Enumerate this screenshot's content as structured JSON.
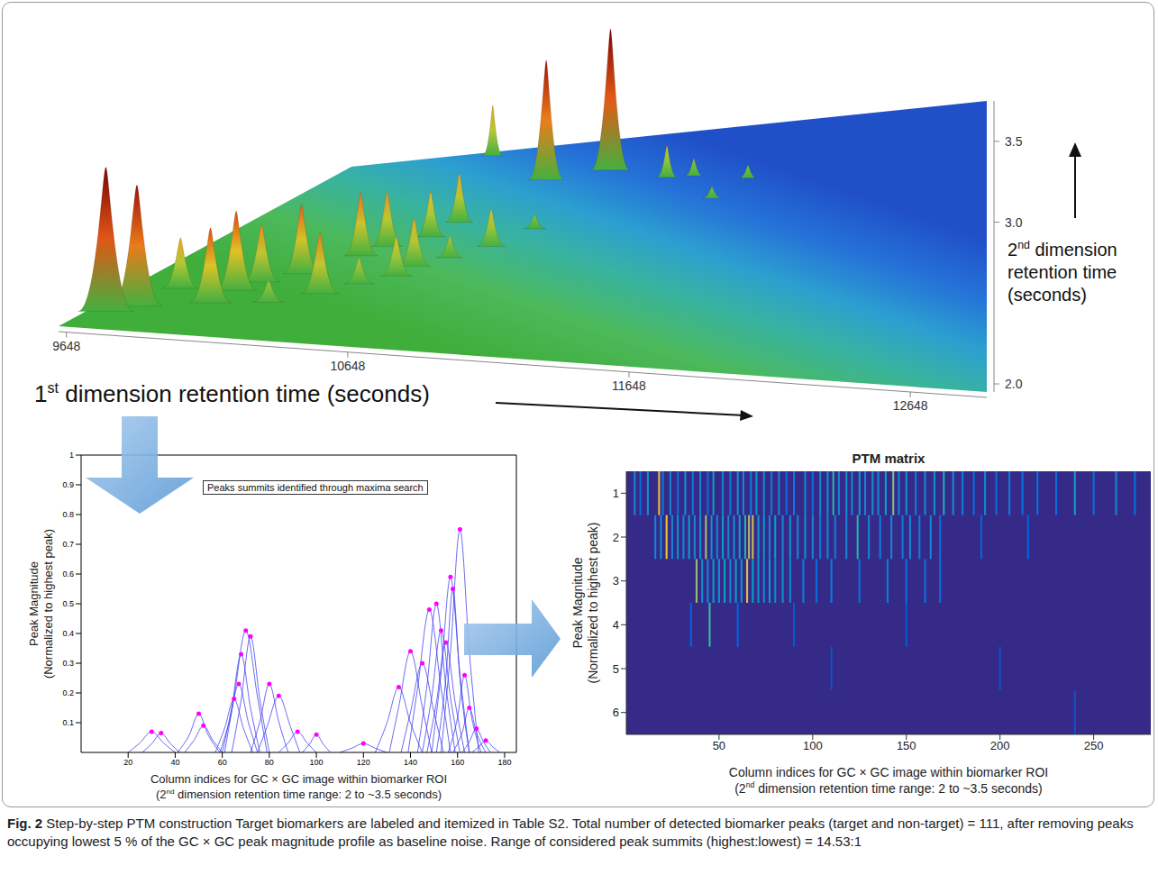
{
  "caption": {
    "label": "Fig. 2",
    "text": "Step-by-step PTM construction Target biomarkers are labeled and itemized in Table S2. Total number of detected biomarker peaks (target and non-target) = 111, after removing peaks occupying lowest 5 % of the GC × GC peak magnitude profile as baseline noise. Range of considered peak summits (highest:lowest) = 14.53:1"
  },
  "chart_data": [
    {
      "type": "surface",
      "x_label": "1st dimension retention time (seconds)",
      "y_label": "2nd dimension retention time (seconds)",
      "xlim": [
        9620,
        12920
      ],
      "xticks": [
        9648,
        10648,
        11648,
        12648
      ],
      "ylim": [
        1.95,
        3.75
      ],
      "yticks": [
        {
          "value": 2,
          "label": "2.0"
        },
        {
          "value": 3,
          "label": "3.0"
        },
        3.5
      ],
      "peaks": [
        {
          "x": 10380,
          "y": 3.71,
          "z": 0.35
        },
        {
          "x": 11092,
          "y": 3.48,
          "z": 0.98
        },
        {
          "x": 10805,
          "y": 3.43,
          "z": 0.83
        },
        {
          "x": 11399,
          "y": 3.39,
          "z": 0.22
        },
        {
          "x": 11527,
          "y": 3.39,
          "z": 0.12
        },
        {
          "x": 11795,
          "y": 3.35,
          "z": 0.09
        },
        {
          "x": 11666,
          "y": 3.21,
          "z": 0.08
        },
        {
          "x": 10587,
          "y": 3.07,
          "z": 0.34
        },
        {
          "x": 10950,
          "y": 3.0,
          "z": 0.1
        },
        {
          "x": 10528,
          "y": 2.94,
          "z": 0.31
        },
        {
          "x": 10389,
          "y": 2.85,
          "z": 0.38
        },
        {
          "x": 10828,
          "y": 2.85,
          "z": 0.26
        },
        {
          "x": 10326,
          "y": 2.76,
          "z": 0.44
        },
        {
          "x": 10700,
          "y": 2.75,
          "z": 0.15
        },
        {
          "x": 10590,
          "y": 2.67,
          "z": 0.33
        },
        {
          "x": 10181,
          "y": 2.58,
          "z": 0.48
        },
        {
          "x": 10560,
          "y": 2.58,
          "z": 0.27
        },
        {
          "x": 10450,
          "y": 2.5,
          "z": 0.18
        },
        {
          "x": 10072,
          "y": 2.49,
          "z": 0.4
        },
        {
          "x": 10023,
          "y": 2.4,
          "z": 0.55
        },
        {
          "x": 10346,
          "y": 2.4,
          "z": 0.42
        },
        {
          "x": 9808,
          "y": 2.4,
          "z": 0.35
        },
        {
          "x": 10200,
          "y": 2.3,
          "z": 0.15
        },
        {
          "x": 9996,
          "y": 2.27,
          "z": 0.52
        },
        {
          "x": 9760,
          "y": 2.2,
          "z": 0.84
        },
        {
          "x": 9686,
          "y": 2.13,
          "z": 1.0
        }
      ]
    },
    {
      "type": "line",
      "annotation": "Peaks summits identified through maxima search",
      "x_label": "Column indices for GC × GC image within biomarker ROI (2nd dimension retention time range: 2 to ~3.5 seconds)",
      "y_label": "Peak Magnitude (Normalized to highest peak)",
      "xlim": [
        0,
        185
      ],
      "xticks": [
        20,
        40,
        60,
        80,
        100,
        120,
        140,
        160,
        180
      ],
      "ylim": [
        0,
        1
      ],
      "yticks": [
        0.1,
        0.2,
        0.3,
        0.4,
        0.5,
        0.6,
        0.7,
        0.8,
        0.9,
        1
      ],
      "color": "#3a3af0",
      "marker": "circle",
      "series": [
        {
          "x": [
            20,
            25,
            30,
            35,
            40
          ],
          "values": [
            0,
            0.032,
            0.07,
            0.032,
            0
          ]
        },
        {
          "x": [
            26,
            30,
            34,
            38,
            42
          ],
          "values": [
            0,
            0.029,
            0.065,
            0.029,
            0
          ]
        },
        {
          "x": [
            41,
            46,
            50,
            54,
            59
          ],
          "values": [
            0,
            0.059,
            0.13,
            0.059,
            0
          ]
        },
        {
          "x": [
            44,
            48,
            52,
            56,
            60
          ],
          "values": [
            0,
            0.041,
            0.09,
            0.041,
            0
          ]
        },
        {
          "x": [
            57,
            61,
            65,
            69,
            73
          ],
          "values": [
            0,
            0.081,
            0.18,
            0.081,
            0
          ]
        },
        {
          "x": [
            59,
            63,
            67,
            71,
            75
          ],
          "values": [
            0,
            0.104,
            0.23,
            0.104,
            0
          ]
        },
        {
          "x": [
            60,
            64,
            68,
            72,
            76
          ],
          "values": [
            0,
            0.149,
            0.33,
            0.149,
            0
          ]
        },
        {
          "x": [
            61,
            65,
            70,
            75,
            79
          ],
          "values": [
            0,
            0.185,
            0.41,
            0.185,
            0
          ]
        },
        {
          "x": [
            64,
            68,
            72,
            76,
            80
          ],
          "values": [
            0,
            0.176,
            0.39,
            0.176,
            0
          ]
        },
        {
          "x": [
            72,
            76,
            80,
            84,
            88
          ],
          "values": [
            0,
            0.104,
            0.23,
            0.104,
            0
          ]
        },
        {
          "x": [
            75,
            79,
            84,
            89,
            93
          ],
          "values": [
            0,
            0.086,
            0.19,
            0.086,
            0
          ]
        },
        {
          "x": [
            84,
            88,
            92,
            96,
            100
          ],
          "values": [
            0,
            0.032,
            0.07,
            0.032,
            0
          ]
        },
        {
          "x": [
            94,
            97,
            100,
            103,
            106
          ],
          "values": [
            0,
            0.027,
            0.06,
            0.027,
            0
          ]
        },
        {
          "x": [
            110,
            115,
            120,
            125,
            130
          ],
          "values": [
            0,
            0.014,
            0.03,
            0.014,
            0
          ]
        },
        {
          "x": [
            125,
            130,
            135,
            140,
            145
          ],
          "values": [
            0,
            0.099,
            0.22,
            0.099,
            0
          ]
        },
        {
          "x": [
            131,
            135,
            140,
            145,
            149
          ],
          "values": [
            0,
            0.153,
            0.34,
            0.153,
            0
          ]
        },
        {
          "x": [
            136,
            140,
            145,
            150,
            154
          ],
          "values": [
            0,
            0.135,
            0.3,
            0.135,
            0
          ]
        },
        {
          "x": [
            139,
            143,
            148,
            153,
            157
          ],
          "values": [
            0,
            0.216,
            0.48,
            0.216,
            0
          ]
        },
        {
          "x": [
            143,
            147,
            151,
            155,
            159
          ],
          "values": [
            0,
            0.225,
            0.5,
            0.225,
            0
          ]
        },
        {
          "x": [
            145,
            149,
            153,
            157,
            161
          ],
          "values": [
            0,
            0.185,
            0.41,
            0.185,
            0
          ]
        },
        {
          "x": [
            147,
            151,
            155,
            159,
            163
          ],
          "values": [
            0,
            0.167,
            0.37,
            0.167,
            0
          ]
        },
        {
          "x": [
            149,
            153,
            157,
            161,
            165
          ],
          "values": [
            0,
            0.266,
            0.59,
            0.266,
            0
          ]
        },
        {
          "x": [
            151,
            155,
            158,
            161,
            165
          ],
          "values": [
            0,
            0.248,
            0.55,
            0.248,
            0
          ]
        },
        {
          "x": [
            153,
            157,
            161,
            165,
            169
          ],
          "values": [
            0,
            0.338,
            0.75,
            0.338,
            0
          ]
        },
        {
          "x": [
            156,
            160,
            163,
            166,
            170
          ],
          "values": [
            0,
            0.117,
            0.26,
            0.117,
            0
          ]
        },
        {
          "x": [
            158,
            162,
            165,
            168,
            172
          ],
          "values": [
            0,
            0.068,
            0.15,
            0.068,
            0
          ]
        },
        {
          "x": [
            162,
            165,
            168,
            171,
            174
          ],
          "values": [
            0,
            0.036,
            0.08,
            0.036,
            0
          ]
        },
        {
          "x": [
            166,
            169,
            172,
            175,
            178
          ],
          "values": [
            0,
            0.018,
            0.04,
            0.018,
            0
          ]
        }
      ]
    },
    {
      "type": "heatmap",
      "title": "PTM matrix",
      "x_label": "Column indices for GC × GC image within biomarker ROI (2nd dimension retention time range: 2 to ~3.5 seconds)",
      "y_label": "Peak Magnitude (Normalized to highest peak)",
      "xlim": [
        0.5,
        280.5
      ],
      "xticks": [
        50,
        100,
        150,
        200,
        250
      ],
      "ylim": [
        0.5,
        6.5
      ],
      "yticks": [
        1,
        2,
        3,
        4,
        5,
        6
      ],
      "zlim": [
        0,
        1
      ],
      "cells": [
        [
          1,
          5,
          0.3
        ],
        [
          1,
          8,
          0.2
        ],
        [
          1,
          12,
          0.35
        ],
        [
          1,
          18,
          0.9
        ],
        [
          1,
          20,
          0.25
        ],
        [
          1,
          24,
          0.3
        ],
        [
          1,
          28,
          0.2
        ],
        [
          1,
          32,
          0.35
        ],
        [
          1,
          36,
          0.25
        ],
        [
          1,
          40,
          0.3
        ],
        [
          1,
          44,
          0.2
        ],
        [
          1,
          47,
          0.4
        ],
        [
          1,
          52,
          0.3
        ],
        [
          1,
          56,
          0.25
        ],
        [
          1,
          60,
          0.35
        ],
        [
          1,
          63,
          0.3
        ],
        [
          1,
          67,
          0.25
        ],
        [
          1,
          70,
          0.35
        ],
        [
          1,
          74,
          0.3
        ],
        [
          1,
          78,
          0.25
        ],
        [
          1,
          82,
          0.3
        ],
        [
          1,
          86,
          0.2
        ],
        [
          1,
          90,
          0.25
        ],
        [
          1,
          96,
          0.3
        ],
        [
          1,
          100,
          0.2
        ],
        [
          1,
          104,
          0.3
        ],
        [
          1,
          108,
          0.35
        ],
        [
          1,
          111,
          0.55
        ],
        [
          1,
          114,
          0.3
        ],
        [
          1,
          118,
          0.35
        ],
        [
          1,
          121,
          0.3
        ],
        [
          1,
          125,
          0.4
        ],
        [
          1,
          128,
          0.3
        ],
        [
          1,
          132,
          0.35
        ],
        [
          1,
          135,
          0.3
        ],
        [
          1,
          139,
          0.4
        ],
        [
          1,
          143,
          0.72
        ],
        [
          1,
          146,
          0.3
        ],
        [
          1,
          150,
          0.35
        ],
        [
          1,
          155,
          0.25
        ],
        [
          1,
          160,
          0.3
        ],
        [
          1,
          165,
          0.35
        ],
        [
          1,
          170,
          0.5
        ],
        [
          1,
          175,
          0.3
        ],
        [
          1,
          180,
          0.25
        ],
        [
          1,
          186,
          0.2
        ],
        [
          1,
          192,
          0.3
        ],
        [
          1,
          198,
          0.2
        ],
        [
          1,
          205,
          0.25
        ],
        [
          1,
          212,
          0.2
        ],
        [
          1,
          220,
          0.2
        ],
        [
          1,
          230,
          0.2
        ],
        [
          1,
          240,
          0.4
        ],
        [
          1,
          250,
          0.2
        ],
        [
          1,
          262,
          0.3
        ],
        [
          1,
          272,
          0.2
        ],
        [
          2,
          16,
          0.3
        ],
        [
          2,
          19,
          0.35
        ],
        [
          2,
          22,
          0.92
        ],
        [
          2,
          25,
          0.3
        ],
        [
          2,
          28,
          0.35
        ],
        [
          2,
          31,
          0.3
        ],
        [
          2,
          34,
          0.4
        ],
        [
          2,
          37,
          0.3
        ],
        [
          2,
          40,
          0.35
        ],
        [
          2,
          43,
          0.78
        ],
        [
          2,
          46,
          0.35
        ],
        [
          2,
          49,
          0.3
        ],
        [
          2,
          52,
          0.4
        ],
        [
          2,
          55,
          0.3
        ],
        [
          2,
          58,
          0.35
        ],
        [
          2,
          61,
          0.4
        ],
        [
          2,
          64,
          0.55
        ],
        [
          2,
          66,
          0.8
        ],
        [
          2,
          68,
          0.85
        ],
        [
          2,
          71,
          0.4
        ],
        [
          2,
          74,
          0.35
        ],
        [
          2,
          77,
          0.3
        ],
        [
          2,
          80,
          0.4
        ],
        [
          2,
          84,
          0.3
        ],
        [
          2,
          88,
          0.35
        ],
        [
          2,
          92,
          0.3
        ],
        [
          2,
          96,
          0.35
        ],
        [
          2,
          100,
          0.3
        ],
        [
          2,
          104,
          0.25
        ],
        [
          2,
          108,
          0.3
        ],
        [
          2,
          112,
          0.25
        ],
        [
          2,
          118,
          0.3
        ],
        [
          2,
          124,
          0.55
        ],
        [
          2,
          130,
          0.3
        ],
        [
          2,
          136,
          0.25
        ],
        [
          2,
          142,
          0.3
        ],
        [
          2,
          148,
          0.25
        ],
        [
          2,
          152,
          0.3
        ],
        [
          2,
          157,
          0.25
        ],
        [
          2,
          163,
          0.3
        ],
        [
          2,
          168,
          0.2
        ],
        [
          2,
          190,
          0.15
        ],
        [
          2,
          215,
          0.15
        ],
        [
          3,
          38,
          0.75
        ],
        [
          3,
          41,
          0.35
        ],
        [
          3,
          44,
          0.3
        ],
        [
          3,
          47,
          0.4
        ],
        [
          3,
          50,
          0.35
        ],
        [
          3,
          53,
          0.45
        ],
        [
          3,
          56,
          0.3
        ],
        [
          3,
          59,
          0.4
        ],
        [
          3,
          62,
          0.35
        ],
        [
          3,
          65,
          0.88
        ],
        [
          3,
          68,
          0.4
        ],
        [
          3,
          71,
          0.35
        ],
        [
          3,
          74,
          0.3
        ],
        [
          3,
          77,
          0.4
        ],
        [
          3,
          80,
          0.3
        ],
        [
          3,
          84,
          0.35
        ],
        [
          3,
          88,
          0.3
        ],
        [
          3,
          95,
          0.25
        ],
        [
          3,
          102,
          0.2
        ],
        [
          3,
          110,
          0.25
        ],
        [
          3,
          125,
          0.2
        ],
        [
          3,
          140,
          0.25
        ],
        [
          3,
          150,
          0.2
        ],
        [
          3,
          160,
          0.2
        ],
        [
          3,
          168,
          0.2
        ],
        [
          4,
          35,
          0.15
        ],
        [
          4,
          45,
          0.6
        ],
        [
          4,
          60,
          0.15
        ],
        [
          4,
          90,
          0.12
        ],
        [
          4,
          150,
          0.12
        ],
        [
          5,
          110,
          0.1
        ],
        [
          5,
          200,
          0.1
        ],
        [
          6,
          240,
          0.1
        ]
      ]
    }
  ]
}
